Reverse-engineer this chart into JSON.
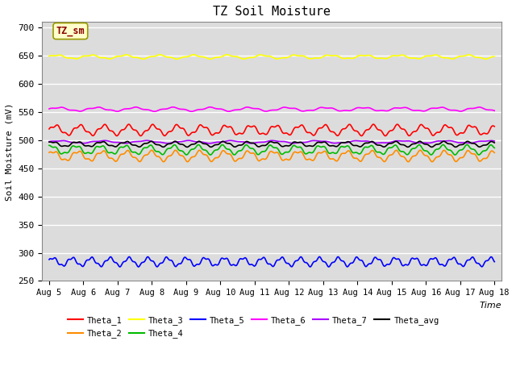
{
  "title": "TZ Soil Moisture",
  "xlabel": "Time",
  "ylabel": "Soil Moisture (mV)",
  "ylim": [
    250,
    710
  ],
  "yticks": [
    250,
    300,
    350,
    400,
    450,
    500,
    550,
    600,
    650,
    700
  ],
  "num_points": 500,
  "series": [
    {
      "name": "Theta_1",
      "color": "#FF0000",
      "base": 518,
      "amp": 8,
      "freq": 1.4,
      "phase": 0.0
    },
    {
      "name": "Theta_2",
      "color": "#FF8C00",
      "base": 472,
      "amp": 8,
      "freq": 1.4,
      "phase": 0.5
    },
    {
      "name": "Theta_3",
      "color": "#FFFF00",
      "base": 648,
      "amp": 3,
      "freq": 1.0,
      "phase": 0.2
    },
    {
      "name": "Theta_4",
      "color": "#00BB00",
      "base": 483,
      "amp": 7,
      "freq": 1.4,
      "phase": 1.0
    },
    {
      "name": "Theta_5",
      "color": "#0000FF",
      "base": 284,
      "amp": 7,
      "freq": 1.8,
      "phase": 0.3
    },
    {
      "name": "Theta_6",
      "color": "#FF00FF",
      "base": 555,
      "amp": 3,
      "freq": 0.9,
      "phase": 0.0
    },
    {
      "name": "Theta_7",
      "color": "#AA00FF",
      "base": 497,
      "amp": 2,
      "freq": 0.8,
      "phase": 0.0
    },
    {
      "name": "Theta_avg",
      "color": "#000000",
      "base": 493,
      "amp": 4,
      "freq": 1.4,
      "phase": 0.7
    }
  ],
  "bg_color": "#DCDCDC",
  "box_label": "TZ_sm",
  "box_bg": "#FFFFCC",
  "box_text_color": "#8B0000",
  "box_edge_color": "#999900"
}
